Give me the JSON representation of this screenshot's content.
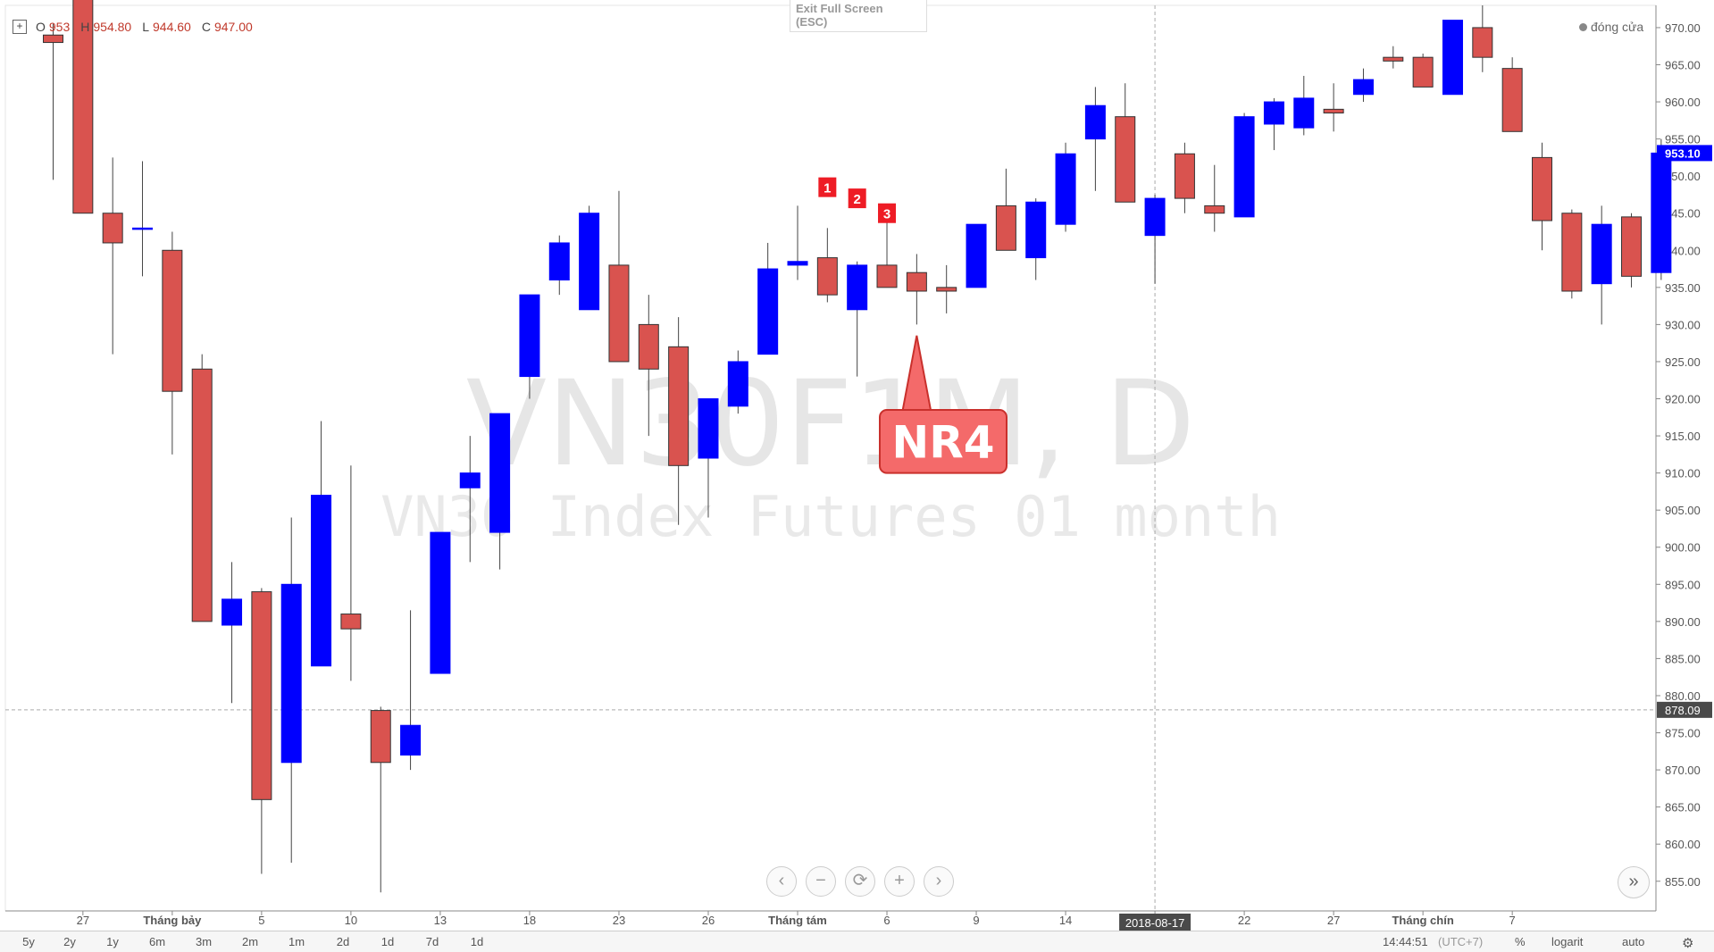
{
  "legend": {
    "o_label": "O",
    "o_value": "953",
    "h_label": "H",
    "h_value": "954.80",
    "l_label": "L",
    "l_value": "944.60",
    "c_label": "C",
    "c_value": "947.00"
  },
  "exit_fullscreen": {
    "line1": "Exit Full Screen",
    "line2": "(ESC)"
  },
  "market_status": "đóng cửa",
  "watermark": {
    "symbol": "VN30F1M, D",
    "description": "VN30 Index Futures 01 month"
  },
  "annotation": {
    "nr4_label": "NR4",
    "markers": [
      "1",
      "2",
      "3"
    ]
  },
  "colors": {
    "up": "#0000ff",
    "down": "#d9534f",
    "annotation": "#ee1c25"
  },
  "icons": {
    "legend_toggle": "plus-box-icon",
    "scroll_left": "chevron-left-icon",
    "zoom_out": "minus-icon",
    "reset": "refresh-icon",
    "zoom_in": "plus-icon",
    "scroll_right": "chevron-right-icon",
    "jump_latest": "double-chevron-right-icon",
    "settings": "gear-icon"
  },
  "bottom_bar": {
    "ranges": [
      "5y",
      "2y",
      "1y",
      "6m",
      "3m",
      "2m",
      "1m",
      "2d",
      "1d",
      "7d",
      "1d"
    ],
    "time": "14:44:51",
    "tz": "(UTC+7)",
    "percent": "%",
    "log": "logarit",
    "auto": "auto"
  },
  "chart_data": {
    "type": "candlestick",
    "ylim": [
      851,
      973
    ],
    "yticks": [
      "855.00",
      "860.00",
      "865.00",
      "870.00",
      "875.00",
      "880.00",
      "885.00",
      "890.00",
      "895.00",
      "900.00",
      "905.00",
      "910.00",
      "915.00",
      "920.00",
      "925.00",
      "930.00",
      "935.00",
      "940.00",
      "945.00",
      "950.00",
      "955.00",
      "960.00",
      "965.00",
      "970.00"
    ],
    "xtick_labels": [
      {
        "i": 1,
        "label": "27"
      },
      {
        "i": 4,
        "label": "Tháng bảy"
      },
      {
        "i": 7,
        "label": "5"
      },
      {
        "i": 10,
        "label": "10"
      },
      {
        "i": 13,
        "label": "13"
      },
      {
        "i": 16,
        "label": "18"
      },
      {
        "i": 19,
        "label": "23"
      },
      {
        "i": 22,
        "label": "26"
      },
      {
        "i": 25,
        "label": "Tháng tám"
      },
      {
        "i": 28,
        "label": "6"
      },
      {
        "i": 31,
        "label": "9"
      },
      {
        "i": 34,
        "label": "14"
      },
      {
        "i": 37,
        "label": "2018-08-17"
      },
      {
        "i": 40,
        "label": "22"
      },
      {
        "i": 43,
        "label": "27"
      },
      {
        "i": 46,
        "label": "Tháng chín"
      },
      {
        "i": 49,
        "label": "7"
      }
    ],
    "last_price": "953.10",
    "crosshair": {
      "price": "878.09",
      "date": "2018-08-17"
    },
    "candles": [
      [
        969,
        970.5,
        949.5,
        968
      ],
      [
        978,
        980,
        945,
        945
      ],
      [
        945,
        952.5,
        926,
        941
      ],
      [
        943,
        952,
        936.5,
        943
      ],
      [
        940,
        942.5,
        912.5,
        921
      ],
      [
        924,
        926,
        890,
        890
      ],
      [
        889.5,
        898,
        879,
        893
      ],
      [
        894,
        894.5,
        856,
        866
      ],
      [
        871,
        904,
        857.5,
        895
      ],
      [
        884,
        917,
        884,
        907
      ],
      [
        891,
        911,
        882,
        889
      ],
      [
        878,
        878.5,
        853.5,
        871
      ],
      [
        872,
        891.5,
        870,
        876
      ],
      [
        883,
        902,
        883,
        902
      ],
      [
        908,
        915,
        898,
        910
      ],
      [
        902,
        918,
        897,
        918
      ],
      [
        923,
        934,
        920,
        934
      ],
      [
        936,
        942,
        934,
        941
      ],
      [
        932,
        946,
        932,
        945
      ],
      [
        938,
        948,
        925,
        925
      ],
      [
        930,
        934,
        915,
        924
      ],
      [
        927,
        931,
        903,
        911
      ],
      [
        912,
        920,
        904,
        920
      ],
      [
        919,
        926.5,
        918,
        925
      ],
      [
        926,
        941,
        926,
        937.5
      ],
      [
        938,
        946,
        936,
        938.5
      ],
      [
        939,
        943,
        933,
        934
      ],
      [
        932,
        938.5,
        923,
        938
      ],
      [
        938,
        945,
        935,
        935
      ],
      [
        937,
        939.5,
        930,
        934.5
      ],
      [
        935,
        938,
        931.5,
        934.5
      ],
      [
        935,
        943.5,
        935,
        943.5
      ],
      [
        946,
        951,
        940,
        940
      ],
      [
        939,
        947,
        936,
        946.5
      ],
      [
        943.5,
        954.5,
        942.5,
        953
      ],
      [
        955,
        962,
        948,
        959.5
      ],
      [
        958,
        962.5,
        946.5,
        946.5
      ],
      [
        942,
        947.5,
        935.5,
        947
      ],
      [
        953,
        954.5,
        945,
        947
      ],
      [
        946,
        951.5,
        942.5,
        945
      ],
      [
        944.5,
        958.5,
        944.5,
        958
      ],
      [
        957,
        960.5,
        953.5,
        960
      ],
      [
        956.5,
        963.5,
        955.5,
        960.5
      ],
      [
        959,
        962.5,
        956,
        958.5
      ],
      [
        961,
        964.5,
        960,
        963
      ],
      [
        966,
        967.5,
        964.5,
        965.5
      ],
      [
        966,
        966.5,
        962,
        962
      ],
      [
        961,
        971,
        961,
        971
      ],
      [
        970,
        973,
        964,
        966
      ],
      [
        964.5,
        966,
        956,
        956
      ],
      [
        952.5,
        954.5,
        940,
        944
      ],
      [
        945,
        945.5,
        933.5,
        934.5
      ],
      [
        935.5,
        946,
        930,
        943.5
      ],
      [
        944.5,
        945,
        935,
        936.5
      ],
      [
        937,
        955,
        936,
        953.1
      ]
    ]
  }
}
